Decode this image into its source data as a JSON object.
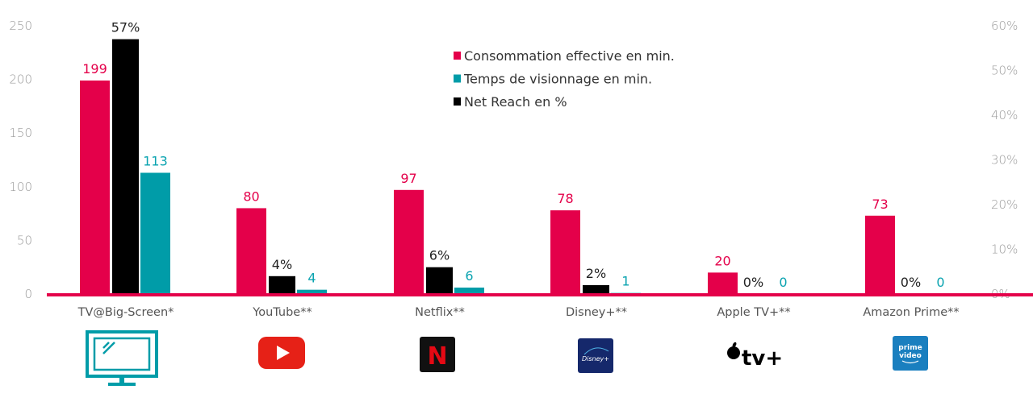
{
  "chart_data": {
    "type": "bar",
    "categories": [
      "TV@Big-Screen*",
      "YouTube**",
      "Netflix**",
      "Disney+**",
      "Apple TV+**",
      "Amazon Prime**"
    ],
    "series": [
      {
        "name": "Consommation effective en min.",
        "axis": "left",
        "color": "#e4004a",
        "label_color": "#e4004a",
        "values": [
          199,
          80,
          97,
          78,
          20,
          73
        ],
        "labels": [
          "199",
          "80",
          "97",
          "78",
          "20",
          "73"
        ]
      },
      {
        "name": "Net Reach en %",
        "axis": "right",
        "color": "#000000",
        "label_color": "#222222",
        "values": [
          57,
          4,
          6,
          2,
          0,
          0
        ],
        "labels": [
          "57%",
          "4%",
          "6%",
          "2%",
          "0%",
          "0%"
        ]
      },
      {
        "name": "Temps de visionnage en min.",
        "axis": "left",
        "color": "#009ca8",
        "label_color": "#0aa3b0",
        "values": [
          113,
          4,
          6,
          1,
          0,
          0
        ],
        "labels": [
          "113",
          "4",
          "6",
          "1",
          "0",
          "0"
        ]
      }
    ],
    "legend": [
      "Consommation effective en min.",
      "Temps de visionnage en min.",
      "Net Reach en %"
    ],
    "legend_colors": [
      "#e4004a",
      "#009ca8",
      "#000000"
    ],
    "legend_placement": "top-center",
    "ylim_left": [
      0,
      250
    ],
    "yticks_left": [
      "0",
      "50",
      "100",
      "150",
      "200",
      "250"
    ],
    "ylim_right": [
      0,
      60
    ],
    "yticks_right": [
      "0%",
      "10%",
      "20%",
      "30%",
      "40%",
      "50%",
      "60%"
    ],
    "grid": false,
    "baseline_color": "#e4004a",
    "icons": [
      "tv-monitor-icon",
      "youtube-icon",
      "netflix-icon",
      "disney-plus-icon",
      "apple-tv-plus-icon",
      "prime-video-icon"
    ],
    "icon_text": {
      "netflix": "N",
      "disney": "Disney+",
      "apple": "tv+",
      "prime": [
        "prime",
        "video"
      ]
    }
  }
}
